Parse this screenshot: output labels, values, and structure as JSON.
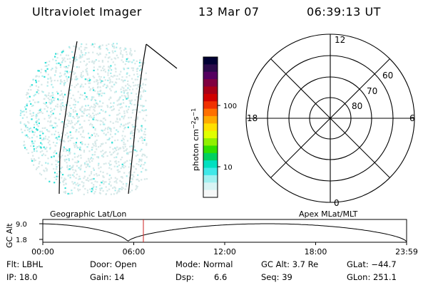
{
  "header": {
    "instrument": "Ultraviolet Imager",
    "date": "13 Mar 07",
    "time": "06:39:13 UT"
  },
  "colorbar": {
    "unit_label": "photon cm",
    "unit_exp1": "−2",
    "unit_mid": "s",
    "unit_exp2": "−1",
    "tick_100": "100",
    "tick_10": "10",
    "colors": [
      "#000033",
      "#2a0a4a",
      "#550060",
      "#800040",
      "#a80018",
      "#d00000",
      "#f03000",
      "#ff7000",
      "#ffaa00",
      "#ffe000",
      "#e0ff00",
      "#90f000",
      "#30e000",
      "#00d060",
      "#00e0c0",
      "#40e8e8",
      "#a0f0f0",
      "#d8f4f4",
      "#f6f8f8"
    ]
  },
  "polar": {
    "mlt_12": "12",
    "mlt_18": "18",
    "mlt_6": "6",
    "mlt_0": "0",
    "lat_60": "60",
    "lat_70": "70",
    "lat_80": "80"
  },
  "labels": {
    "geographic": "Geographic Lat/Lon",
    "apex": "Apex MLat/MLT"
  },
  "altitude_plot": {
    "axis_label": "GC Alt",
    "tick_high": "9.0",
    "tick_low": "1.8",
    "times": [
      "00:00",
      "06:00",
      "12:00",
      "18:00",
      "23:59"
    ],
    "marker_color": "#cc2222"
  },
  "info": {
    "flt": "Flt: LBHL",
    "ip": "IP: 18.0",
    "door": "Door: Open",
    "gain": "Gain: 14",
    "mode": "Mode: Normal",
    "dsp_label": "Dsp:",
    "dsp_value": "6.6",
    "gcalt": "GC Alt: 3.7 Re",
    "seq": "Seq: 39",
    "glat": "GLat: −44.7",
    "glon": "GLon: 251.1"
  }
}
